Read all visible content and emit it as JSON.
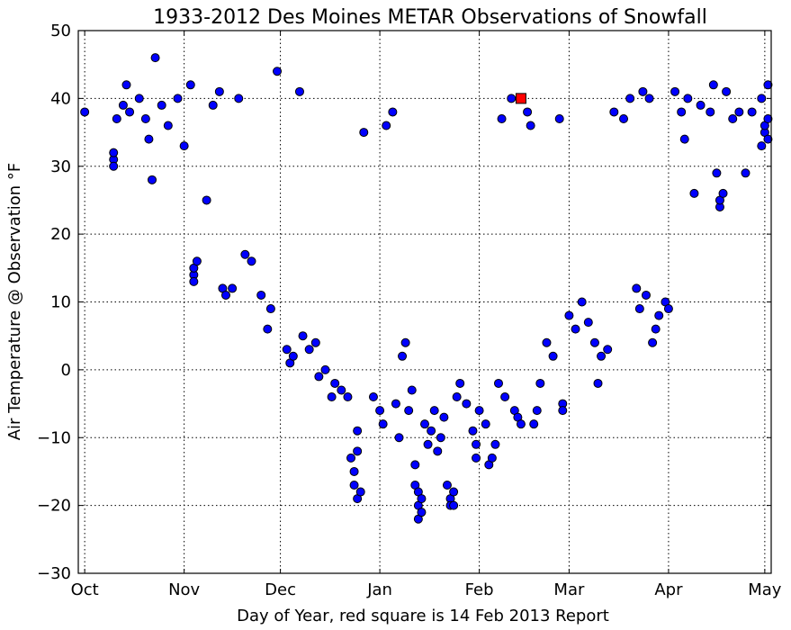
{
  "chart_data": {
    "type": "scatter",
    "title": "1933-2012 Des Moines METAR Observations of Snowfall",
    "xlabel": "Day of Year, red square is 14 Feb 2013 Report",
    "ylabel": "Air Temperature @ Observation °F",
    "ylim": [
      -30,
      50
    ],
    "yticks": [
      -30,
      -20,
      -10,
      0,
      10,
      20,
      30,
      40,
      50
    ],
    "yticklabels": [
      "−30",
      "−20",
      "−10",
      "0",
      "10",
      "20",
      "30",
      "40",
      "50"
    ],
    "xlim": [
      "Sep 29",
      "May 3"
    ],
    "xticks": [
      "Oct 1",
      "Nov 1",
      "Dec 1",
      "Jan 1",
      "Feb 1",
      "Mar 1",
      "Apr 1",
      "May 1"
    ],
    "xticklabels": [
      "Oct",
      "Nov",
      "Dec",
      "Jan",
      "Feb",
      "Mar",
      "Apr",
      "May"
    ],
    "grid": true,
    "series": [
      {
        "marker": "circle",
        "color": "#0000ff",
        "edgecolor": "#000000",
        "points": [
          [
            "Oct 1",
            38
          ],
          [
            "Oct 10",
            31
          ],
          [
            "Oct 10",
            30
          ],
          [
            "Oct 10",
            32
          ],
          [
            "Oct 11",
            37
          ],
          [
            "Oct 13",
            39
          ],
          [
            "Oct 14",
            42
          ],
          [
            "Oct 15",
            38
          ],
          [
            "Oct 18",
            40
          ],
          [
            "Oct 20",
            37
          ],
          [
            "Oct 21",
            34
          ],
          [
            "Oct 22",
            28
          ],
          [
            "Oct 23",
            46
          ],
          [
            "Oct 25",
            39
          ],
          [
            "Oct 27",
            36
          ],
          [
            "Oct 30",
            40
          ],
          [
            "Nov 1",
            33
          ],
          [
            "Nov 3",
            42
          ],
          [
            "Nov 4",
            14
          ],
          [
            "Nov 4",
            15
          ],
          [
            "Nov 4",
            13
          ],
          [
            "Nov 5",
            16
          ],
          [
            "Nov 8",
            25
          ],
          [
            "Nov 10",
            39
          ],
          [
            "Nov 12",
            41
          ],
          [
            "Nov 13",
            12
          ],
          [
            "Nov 14",
            11
          ],
          [
            "Nov 16",
            12
          ],
          [
            "Nov 18",
            40
          ],
          [
            "Nov 20",
            17
          ],
          [
            "Nov 22",
            16
          ],
          [
            "Nov 25",
            11
          ],
          [
            "Nov 27",
            6
          ],
          [
            "Nov 28",
            9
          ],
          [
            "Nov 30",
            44
          ],
          [
            "Dec 3",
            3
          ],
          [
            "Dec 4",
            1
          ],
          [
            "Dec 5",
            2
          ],
          [
            "Dec 7",
            41
          ],
          [
            "Dec 8",
            5
          ],
          [
            "Dec 10",
            3
          ],
          [
            "Dec 12",
            4
          ],
          [
            "Dec 13",
            -1
          ],
          [
            "Dec 15",
            0
          ],
          [
            "Dec 17",
            -4
          ],
          [
            "Dec 18",
            -2
          ],
          [
            "Dec 20",
            -3
          ],
          [
            "Dec 22",
            -4
          ],
          [
            "Dec 23",
            -13
          ],
          [
            "Dec 24",
            -15
          ],
          [
            "Dec 24",
            -17
          ],
          [
            "Dec 25",
            -9
          ],
          [
            "Dec 25",
            -12
          ],
          [
            "Dec 25",
            -19
          ],
          [
            "Dec 26",
            -18
          ],
          [
            "Dec 27",
            35
          ],
          [
            "Dec 30",
            -4
          ],
          [
            "Jan 1",
            -6
          ],
          [
            "Jan 2",
            -8
          ],
          [
            "Jan 3",
            36
          ],
          [
            "Jan 5",
            38
          ],
          [
            "Jan 6",
            -5
          ],
          [
            "Jan 7",
            -10
          ],
          [
            "Jan 8",
            2
          ],
          [
            "Jan 9",
            4
          ],
          [
            "Jan 10",
            -6
          ],
          [
            "Jan 11",
            -3
          ],
          [
            "Jan 12",
            -14
          ],
          [
            "Jan 12",
            -17
          ],
          [
            "Jan 13",
            -18
          ],
          [
            "Jan 13",
            -20
          ],
          [
            "Jan 13",
            -22
          ],
          [
            "Jan 14",
            -19
          ],
          [
            "Jan 14",
            -21
          ],
          [
            "Jan 15",
            -8
          ],
          [
            "Jan 16",
            -11
          ],
          [
            "Jan 17",
            -9
          ],
          [
            "Jan 18",
            -6
          ],
          [
            "Jan 19",
            -12
          ],
          [
            "Jan 20",
            -10
          ],
          [
            "Jan 21",
            -7
          ],
          [
            "Jan 22",
            -17
          ],
          [
            "Jan 23",
            -19
          ],
          [
            "Jan 23",
            -20
          ],
          [
            "Jan 24",
            -20
          ],
          [
            "Jan 24",
            -18
          ],
          [
            "Jan 25",
            -4
          ],
          [
            "Jan 26",
            -2
          ],
          [
            "Jan 28",
            -5
          ],
          [
            "Jan 30",
            -9
          ],
          [
            "Jan 31",
            -11
          ],
          [
            "Jan 31",
            -13
          ],
          [
            "Feb 1",
            -6
          ],
          [
            "Feb 3",
            -8
          ],
          [
            "Feb 4",
            -14
          ],
          [
            "Feb 5",
            -13
          ],
          [
            "Feb 6",
            -11
          ],
          [
            "Feb 7",
            -2
          ],
          [
            "Feb 8",
            37
          ],
          [
            "Feb 9",
            -4
          ],
          [
            "Feb 11",
            40
          ],
          [
            "Feb 12",
            -6
          ],
          [
            "Feb 13",
            -7
          ],
          [
            "Feb 14",
            -8
          ],
          [
            "Feb 16",
            38
          ],
          [
            "Feb 17",
            36
          ],
          [
            "Feb 18",
            -8
          ],
          [
            "Feb 19",
            -6
          ],
          [
            "Feb 20",
            -2
          ],
          [
            "Feb 22",
            4
          ],
          [
            "Feb 24",
            2
          ],
          [
            "Feb 26",
            37
          ],
          [
            "Feb 27",
            -5
          ],
          [
            "Feb 27",
            -6
          ],
          [
            "Mar 1",
            8
          ],
          [
            "Mar 3",
            6
          ],
          [
            "Mar 5",
            10
          ],
          [
            "Mar 7",
            7
          ],
          [
            "Mar 9",
            4
          ],
          [
            "Mar 10",
            -2
          ],
          [
            "Mar 11",
            2
          ],
          [
            "Mar 13",
            3
          ],
          [
            "Mar 15",
            38
          ],
          [
            "Mar 18",
            37
          ],
          [
            "Mar 20",
            40
          ],
          [
            "Mar 22",
            12
          ],
          [
            "Mar 23",
            9
          ],
          [
            "Mar 24",
            41
          ],
          [
            "Mar 25",
            11
          ],
          [
            "Mar 26",
            40
          ],
          [
            "Mar 27",
            4
          ],
          [
            "Mar 28",
            6
          ],
          [
            "Mar 29",
            8
          ],
          [
            "Mar 31",
            10
          ],
          [
            "Apr 1",
            9
          ],
          [
            "Apr 3",
            41
          ],
          [
            "Apr 5",
            38
          ],
          [
            "Apr 6",
            34
          ],
          [
            "Apr 7",
            40
          ],
          [
            "Apr 9",
            26
          ],
          [
            "Apr 11",
            39
          ],
          [
            "Apr 14",
            38
          ],
          [
            "Apr 15",
            42
          ],
          [
            "Apr 16",
            29
          ],
          [
            "Apr 17",
            24
          ],
          [
            "Apr 17",
            25
          ],
          [
            "Apr 18",
            26
          ],
          [
            "Apr 19",
            41
          ],
          [
            "Apr 21",
            37
          ],
          [
            "Apr 23",
            38
          ],
          [
            "Apr 25",
            29
          ],
          [
            "Apr 27",
            38
          ],
          [
            "Apr 30",
            40
          ],
          [
            "Apr 30",
            33
          ],
          [
            "May 1",
            35
          ],
          [
            "May 1",
            36
          ],
          [
            "May 2",
            42
          ],
          [
            "May 2",
            37
          ],
          [
            "May 2",
            34
          ]
        ]
      },
      {
        "marker": "square",
        "color": "#ff0000",
        "edgecolor": "#000000",
        "points": [
          [
            "Feb 14",
            40
          ]
        ]
      }
    ]
  }
}
